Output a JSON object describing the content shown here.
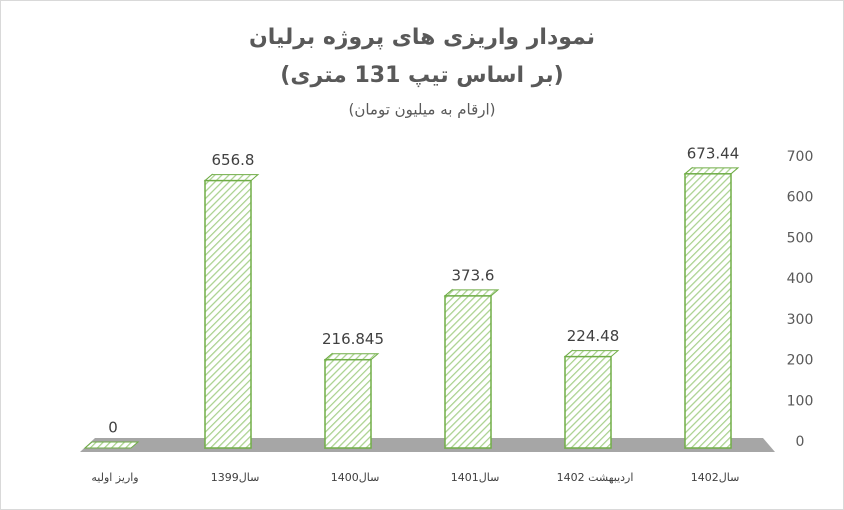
{
  "chart_data": {
    "type": "bar3d",
    "title": "نمودار واریزی های پروژه برلیان",
    "subtitle": "(بر اساس تیپ 131 متری)",
    "annotation": "(ارقام به میلیون تومان)",
    "categories": [
      "واریز اولیه",
      "سال1399",
      "سال1400",
      "سال1401",
      "اردیبهشت 1402",
      "سال1402"
    ],
    "values": [
      0,
      656.8,
      216.845,
      373.6,
      224.48,
      673.44
    ],
    "color": "#70ad47",
    "ylim": [
      0,
      700
    ],
    "yticks": [
      0,
      100,
      200,
      300,
      400,
      500,
      600,
      700
    ],
    "grid": false
  }
}
